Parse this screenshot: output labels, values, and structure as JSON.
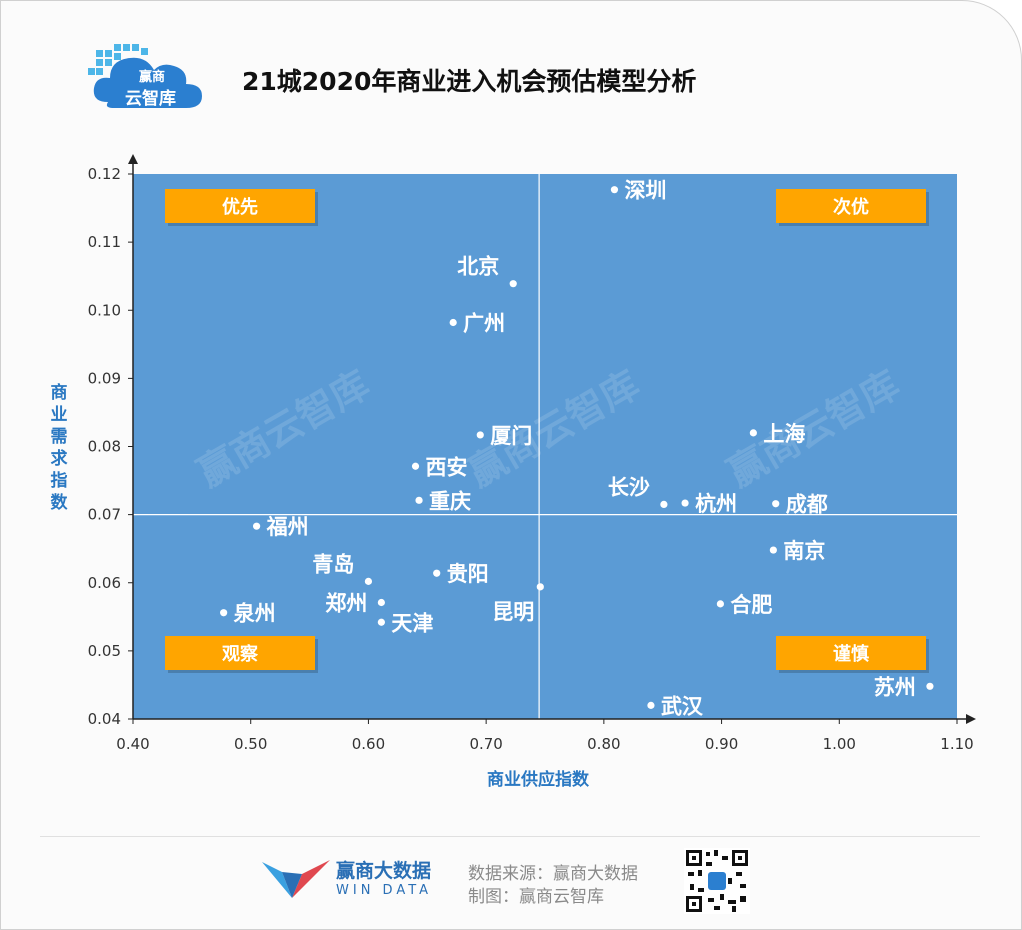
{
  "brand": {
    "logo_line1": "赢商",
    "logo_line2": "云智库",
    "footer_name": "赢商大数据",
    "footer_sub": "WIN DATA",
    "watermark": "赢商云智库"
  },
  "title": "21城2020年商业进入机会预估模型分析",
  "footer": {
    "source": "数据来源：赢商大数据",
    "made_by": "制图：赢商云智库"
  },
  "colors": {
    "plot_bg": "#5b9bd5",
    "quadrant_box": "#ffa500",
    "axis_label": "#2a78c2",
    "point": "#ffffff"
  },
  "chart_data": {
    "type": "scatter",
    "xlabel": "商业供应指数",
    "ylabel": "商业需求指数",
    "xlim": [
      0.4,
      1.1
    ],
    "ylim": [
      0.04,
      0.12
    ],
    "x_ticks": [
      "0.40",
      "0.50",
      "0.60",
      "0.70",
      "0.80",
      "0.90",
      "1.00",
      "1.10"
    ],
    "y_ticks": [
      "0.04",
      "0.05",
      "0.06",
      "0.07",
      "0.08",
      "0.09",
      "0.10",
      "0.11",
      "0.12"
    ],
    "divider_x": 0.745,
    "divider_y": 0.07,
    "quadrants": [
      {
        "label": "优先",
        "position": "top-left"
      },
      {
        "label": "次优",
        "position": "top-right"
      },
      {
        "label": "观察",
        "position": "bottom-left"
      },
      {
        "label": "谨慎",
        "position": "bottom-right"
      }
    ],
    "points": [
      {
        "name": "深圳",
        "x": 0.809,
        "y": 0.1177,
        "label_pos": "right"
      },
      {
        "name": "北京",
        "x": 0.723,
        "y": 0.1039,
        "label_pos": "above-left"
      },
      {
        "name": "广州",
        "x": 0.672,
        "y": 0.0982,
        "label_pos": "right"
      },
      {
        "name": "厦门",
        "x": 0.695,
        "y": 0.0817,
        "label_pos": "right"
      },
      {
        "name": "西安",
        "x": 0.64,
        "y": 0.0771,
        "label_pos": "right"
      },
      {
        "name": "重庆",
        "x": 0.643,
        "y": 0.0721,
        "label_pos": "right"
      },
      {
        "name": "福州",
        "x": 0.505,
        "y": 0.0683,
        "label_pos": "right"
      },
      {
        "name": "青岛",
        "x": 0.6,
        "y": 0.0602,
        "label_pos": "above-left"
      },
      {
        "name": "贵阳",
        "x": 0.658,
        "y": 0.0614,
        "label_pos": "right"
      },
      {
        "name": "郑州",
        "x": 0.611,
        "y": 0.0571,
        "label_pos": "left"
      },
      {
        "name": "天津",
        "x": 0.611,
        "y": 0.0542,
        "label_pos": "right"
      },
      {
        "name": "昆明",
        "x": 0.746,
        "y": 0.0594,
        "label_pos": "below-left"
      },
      {
        "name": "泉州",
        "x": 0.477,
        "y": 0.0556,
        "label_pos": "right"
      },
      {
        "name": "上海",
        "x": 0.927,
        "y": 0.082,
        "label_pos": "right"
      },
      {
        "name": "长沙",
        "x": 0.851,
        "y": 0.0715,
        "label_pos": "above-left"
      },
      {
        "name": "杭州",
        "x": 0.869,
        "y": 0.0717,
        "label_pos": "right"
      },
      {
        "name": "成都",
        "x": 0.946,
        "y": 0.0716,
        "label_pos": "right"
      },
      {
        "name": "南京",
        "x": 0.944,
        "y": 0.0648,
        "label_pos": "right"
      },
      {
        "name": "合肥",
        "x": 0.899,
        "y": 0.0569,
        "label_pos": "right"
      },
      {
        "name": "武汉",
        "x": 0.84,
        "y": 0.042,
        "label_pos": "right"
      },
      {
        "name": "苏州",
        "x": 1.077,
        "y": 0.0448,
        "label_pos": "left"
      }
    ]
  }
}
